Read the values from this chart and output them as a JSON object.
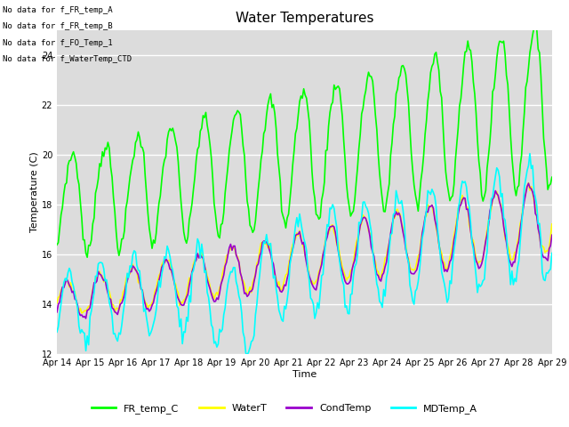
{
  "title": "Water Temperatures",
  "xlabel": "Time",
  "ylabel": "Temperature (C)",
  "ylim": [
    12,
    25
  ],
  "yticks": [
    12,
    14,
    16,
    18,
    20,
    22,
    24
  ],
  "plot_bg_color": "#dcdcdc",
  "annotations": [
    "No data for f_FR_temp_A",
    "No data for f_FR_temp_B",
    "No data for f_FO_Temp_1",
    "No data for f_WaterTemp_CTD"
  ],
  "series": {
    "FR_temp_C": {
      "color": "#00ff00",
      "linewidth": 1.2
    },
    "WaterT": {
      "color": "#ffff00",
      "linewidth": 1.2
    },
    "CondTemp": {
      "color": "#9900cc",
      "linewidth": 1.2
    },
    "MDTemp_A": {
      "color": "#00ffff",
      "linewidth": 1.2
    }
  },
  "xtick_labels": [
    "Apr 14",
    "Apr 15",
    "Apr 16",
    "Apr 17",
    "Apr 18",
    "Apr 19",
    "Apr 20",
    "Apr 21",
    "Apr 22",
    "Apr 23",
    "Apr 24",
    "Apr 25",
    "Apr 26",
    "Apr 27",
    "Apr 28",
    "Apr 29"
  ],
  "legend_ncol": 4
}
